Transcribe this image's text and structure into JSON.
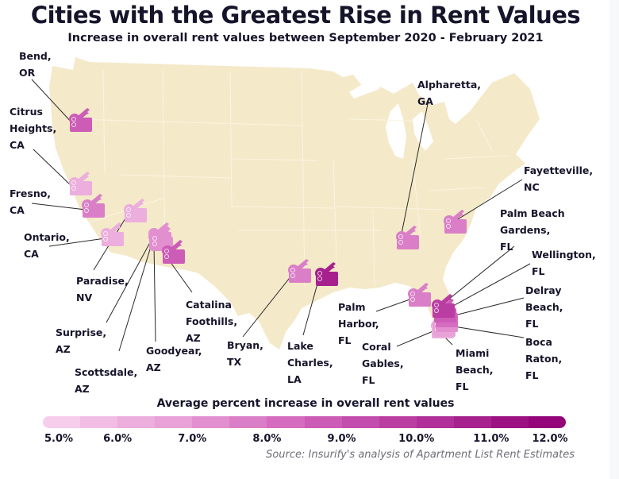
{
  "title": "Cities with the Greatest Rise in Rent Values",
  "subtitle": "Increase in overall rent values between September 2020 - February 2021",
  "legend": {
    "title": "Average percent increase in overall rent values",
    "ticks": [
      "5.0%",
      "6.0%",
      "7.0%",
      "8.0%",
      "9.0%",
      "10.0%",
      "11.0%",
      "12.0%"
    ],
    "range": [
      5.0,
      12.0
    ],
    "colors": [
      "#f7cdec",
      "#f2bde4",
      "#ecaedd",
      "#e8a2d7",
      "#e28fd0",
      "#da7fc7",
      "#d56cbf",
      "#cc5cb6",
      "#c34dac",
      "#ba3ea2",
      "#b02f98",
      "#a6218d",
      "#9c1283",
      "#930579"
    ],
    "icon": "house-key-icon"
  },
  "source": "Source: Insurify's analysis of Apartment List Rent Estimates",
  "colors": {
    "land": "#f4e9c9",
    "borders": "#fbf4e2",
    "text": "#16142a",
    "leader": "#2a2a2a"
  },
  "cities": [
    {
      "name": "Bend,\nOR",
      "value": 8.8
    },
    {
      "name": "Citrus\nHeights,\nCA",
      "value": 6.3
    },
    {
      "name": "Fresno,\nCA",
      "value": 7.6
    },
    {
      "name": "Ontario,\nCA",
      "value": 6.3
    },
    {
      "name": "Paradise,\nNV",
      "value": 6.3
    },
    {
      "name": "Surprise,\nAZ",
      "value": 7.0
    },
    {
      "name": "Scottsdale,\nAZ",
      "value": 7.0
    },
    {
      "name": "Goodyear,\nAZ",
      "value": 7.2
    },
    {
      "name": "Catalina\nFoothills,\nAZ",
      "value": 9.0
    },
    {
      "name": "Bryan,\nTX",
      "value": 7.5
    },
    {
      "name": "Lake\nCharles,\nLA",
      "value": 11.0
    },
    {
      "name": "Palm\nHarbor,\nFL",
      "value": 7.6
    },
    {
      "name": "Coral\nGables,\nFL",
      "value": 6.3
    },
    {
      "name": "Miami\nBeach,\nFL",
      "value": 6.5
    },
    {
      "name": "Boca\nRaton,\nFL",
      "value": 7.2
    },
    {
      "name": "Delray\nBeach,\nFL",
      "value": 8.3
    },
    {
      "name": "Wellington,\nFL",
      "value": 9.0
    },
    {
      "name": "Palm Beach\nGardens,\nFL",
      "value": 10.0
    },
    {
      "name": "Fayetteville,\nNC",
      "value": 7.6
    },
    {
      "name": "Alpharetta,\nGA",
      "value": 7.6
    }
  ]
}
